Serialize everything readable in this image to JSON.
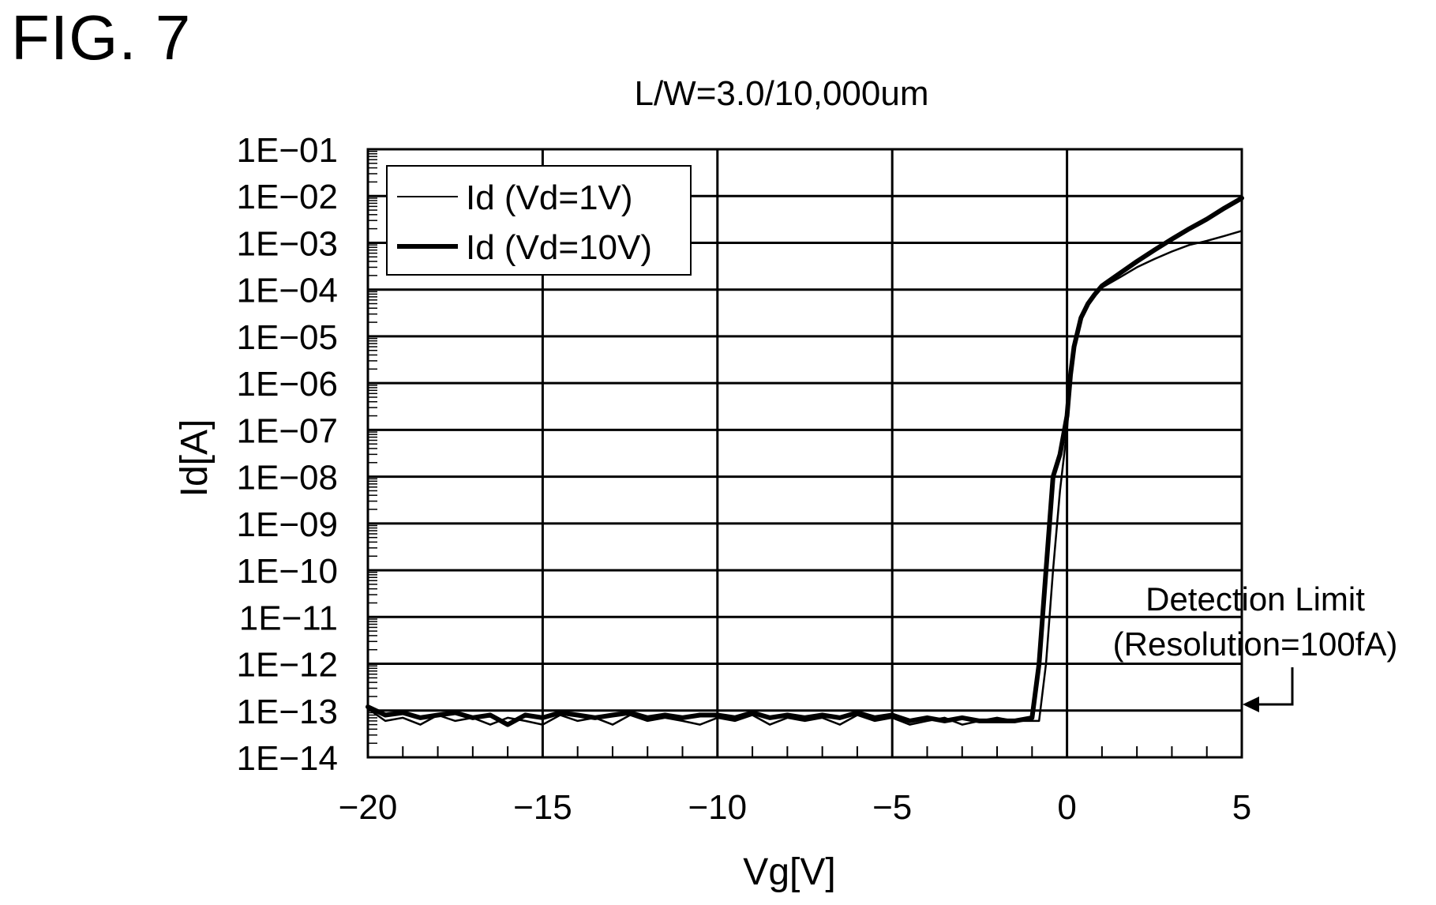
{
  "figure": {
    "label": "FIG. 7"
  },
  "chart_data": {
    "type": "line",
    "title": "L/W=3.0/10,000um",
    "xlabel": "Vg[V]",
    "ylabel": "Id[A]",
    "xlim": [
      -20,
      5
    ],
    "ylim": [
      1e-14,
      0.1
    ],
    "yscale": "log",
    "grid": true,
    "legend_position": "top-left",
    "x_ticks": [
      -20,
      -15,
      -10,
      -5,
      0,
      5
    ],
    "x_tick_labels": [
      "−20",
      "−15",
      "−10",
      "−5",
      "0",
      "5"
    ],
    "y_tick_labels": [
      "1E−01",
      "1E−02",
      "1E−03",
      "1E−04",
      "1E−05",
      "1E−06",
      "1E−07",
      "1E−08",
      "1E−09",
      "1E−10",
      "1E−11",
      "1E−12",
      "1E−13",
      "1E−14"
    ],
    "series": [
      {
        "name": "Id (Vd=1V)",
        "style": "thin",
        "x": [
          -20,
          -19.5,
          -19,
          -18.5,
          -18,
          -17.5,
          -17,
          -16.5,
          -16,
          -15.5,
          -15,
          -14.5,
          -14,
          -13.5,
          -13,
          -12.5,
          -12,
          -11.5,
          -11,
          -10.5,
          -10,
          -9.5,
          -9,
          -8.5,
          -8,
          -7.5,
          -7,
          -6.5,
          -6,
          -5.5,
          -5,
          -4.5,
          -4,
          -3.5,
          -3,
          -2.5,
          -2,
          -1.5,
          -1,
          -0.8,
          -0.6,
          -0.4,
          -0.2,
          0,
          0.1,
          0.2,
          0.4,
          0.6,
          0.8,
          1,
          1.5,
          2,
          2.5,
          3,
          3.5,
          4,
          4.5,
          5
        ],
        "y": [
          1.1e-13,
          6e-14,
          7e-14,
          5e-14,
          8e-14,
          6e-14,
          7e-14,
          5e-14,
          7e-14,
          6e-14,
          5e-14,
          8e-14,
          6e-14,
          7e-14,
          5e-14,
          8e-14,
          6e-14,
          7e-14,
          6e-14,
          5e-14,
          7e-14,
          6e-14,
          8e-14,
          5e-14,
          7e-14,
          6e-14,
          7e-14,
          5e-14,
          8e-14,
          6e-14,
          7e-14,
          5e-14,
          6e-14,
          7e-14,
          5e-14,
          6e-14,
          7e-14,
          6e-14,
          6e-14,
          6e-14,
          1e-12,
          1e-10,
          5e-09,
          1e-07,
          1e-06,
          6e-06,
          2.5e-05,
          5e-05,
          8e-05,
          0.00011,
          0.00018,
          0.0003,
          0.00045,
          0.00065,
          0.0009,
          0.0011,
          0.0014,
          0.0018
        ]
      },
      {
        "name": "Id (Vd=10V)",
        "style": "thick",
        "x": [
          -20,
          -19.5,
          -19,
          -18.5,
          -18,
          -17.5,
          -17,
          -16.5,
          -16,
          -15.5,
          -15,
          -14.5,
          -14,
          -13.5,
          -13,
          -12.5,
          -12,
          -11.5,
          -11,
          -10.5,
          -10,
          -9.5,
          -9,
          -8.5,
          -8,
          -7.5,
          -7,
          -6.5,
          -6,
          -5.5,
          -5,
          -4.5,
          -4,
          -3.5,
          -3,
          -2.5,
          -2,
          -1.5,
          -1,
          -0.8,
          -0.6,
          -0.4,
          -0.2,
          0,
          0.1,
          0.2,
          0.4,
          0.6,
          0.8,
          1,
          1.5,
          2,
          2.5,
          3,
          3.5,
          4,
          4.5,
          5
        ],
        "y": [
          1.2e-13,
          8e-14,
          9e-14,
          7e-14,
          8e-14,
          9e-14,
          7e-14,
          8e-14,
          5e-14,
          8e-14,
          7e-14,
          9e-14,
          8e-14,
          7e-14,
          8e-14,
          9e-14,
          7e-14,
          8e-14,
          7e-14,
          8e-14,
          8e-14,
          7e-14,
          9e-14,
          7e-14,
          8e-14,
          7e-14,
          8e-14,
          7e-14,
          9e-14,
          7e-14,
          8e-14,
          6e-14,
          7e-14,
          6e-14,
          7e-14,
          6e-14,
          6e-14,
          6e-14,
          7e-14,
          1e-12,
          1e-10,
          1e-08,
          3e-08,
          2e-07,
          1.5e-06,
          6e-06,
          2.5e-05,
          5e-05,
          8e-05,
          0.00012,
          0.00022,
          0.0004,
          0.0007,
          0.0012,
          0.002,
          0.0032,
          0.0055,
          0.009
        ]
      }
    ],
    "annotations": [
      {
        "line1": "Detection Limit",
        "line2": "(Resolution=100fA)",
        "target_y": 1e-13
      }
    ]
  }
}
